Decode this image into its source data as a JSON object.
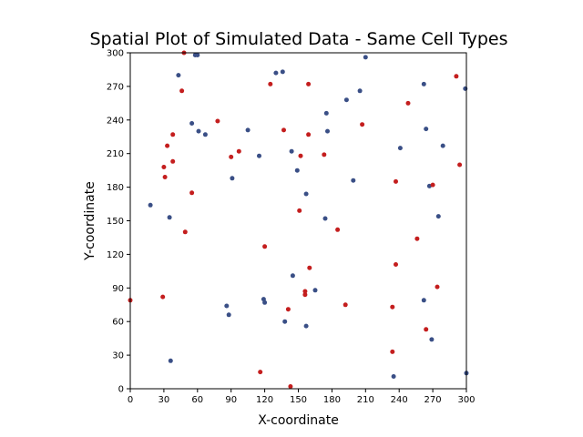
{
  "chart_data": {
    "type": "scatter",
    "title": "Spatial Plot of Simulated Data - Same Cell Types",
    "xlabel": "X-coordinate",
    "ylabel": "Y-coordinate",
    "xlim": [
      0,
      300
    ],
    "ylim": [
      0,
      300
    ],
    "xticks": [
      0,
      30,
      60,
      90,
      120,
      150,
      180,
      210,
      240,
      270,
      300
    ],
    "yticks": [
      0,
      30,
      60,
      90,
      120,
      150,
      180,
      210,
      240,
      270,
      300
    ],
    "grid": false,
    "legend": "none",
    "series": [
      {
        "color": "#3a4f86",
        "points": [
          [
            58,
            298
          ],
          [
            60,
            298
          ],
          [
            43,
            280
          ],
          [
            130,
            282
          ],
          [
            136,
            283
          ],
          [
            210,
            296
          ],
          [
            262,
            272
          ],
          [
            299,
            268
          ],
          [
            205,
            266
          ],
          [
            193,
            258
          ],
          [
            175,
            246
          ],
          [
            55,
            237
          ],
          [
            61,
            230
          ],
          [
            67,
            227
          ],
          [
            105,
            231
          ],
          [
            176,
            230
          ],
          [
            264,
            232
          ],
          [
            241,
            215
          ],
          [
            144,
            212
          ],
          [
            115,
            208
          ],
          [
            279,
            217
          ],
          [
            149,
            195
          ],
          [
            91,
            188
          ],
          [
            199,
            186
          ],
          [
            267,
            181
          ],
          [
            157,
            174
          ],
          [
            18,
            164
          ],
          [
            35,
            153
          ],
          [
            174,
            152
          ],
          [
            275,
            154
          ],
          [
            145,
            101
          ],
          [
            165,
            88
          ],
          [
            119,
            80
          ],
          [
            120,
            77
          ],
          [
            262,
            79
          ],
          [
            86,
            74
          ],
          [
            88,
            66
          ],
          [
            138,
            60
          ],
          [
            157,
            56
          ],
          [
            269,
            44
          ],
          [
            36,
            25
          ],
          [
            235,
            11
          ],
          [
            300,
            14
          ]
        ]
      },
      {
        "color": "#c41e1e",
        "points": [
          [
            48,
            300
          ],
          [
            291,
            279
          ],
          [
            125,
            272
          ],
          [
            159,
            272
          ],
          [
            46,
            266
          ],
          [
            248,
            255
          ],
          [
            78,
            239
          ],
          [
            207,
            236
          ],
          [
            137,
            231
          ],
          [
            159,
            227
          ],
          [
            38,
            227
          ],
          [
            33,
            217
          ],
          [
            97,
            212
          ],
          [
            90,
            207
          ],
          [
            152,
            208
          ],
          [
            173,
            209
          ],
          [
            38,
            203
          ],
          [
            30,
            198
          ],
          [
            294,
            200
          ],
          [
            31,
            189
          ],
          [
            237,
            185
          ],
          [
            270,
            182
          ],
          [
            55,
            175
          ],
          [
            151,
            159
          ],
          [
            185,
            142
          ],
          [
            49,
            140
          ],
          [
            256,
            134
          ],
          [
            120,
            127
          ],
          [
            237,
            111
          ],
          [
            160,
            108
          ],
          [
            274,
            91
          ],
          [
            156,
            87
          ],
          [
            156,
            84
          ],
          [
            29,
            82
          ],
          [
            0,
            79
          ],
          [
            192,
            75
          ],
          [
            234,
            73
          ],
          [
            141,
            71
          ],
          [
            264,
            53
          ],
          [
            234,
            33
          ],
          [
            116,
            15
          ],
          [
            143,
            2
          ]
        ]
      }
    ]
  }
}
